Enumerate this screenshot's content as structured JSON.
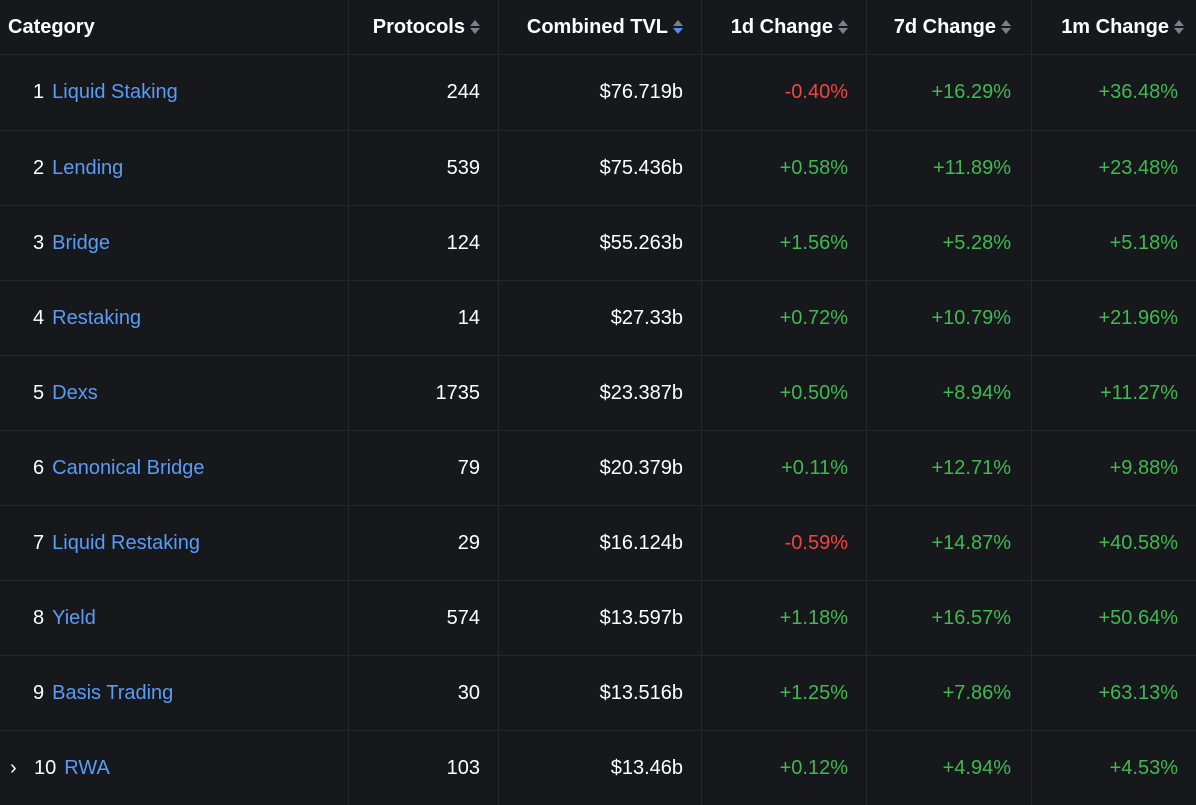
{
  "colors": {
    "background": "#17181c",
    "link": "#5a9bf6",
    "positive": "#3fb950",
    "negative": "#ef4444",
    "sort_active": "#4f8ef7"
  },
  "header": {
    "category": "Category",
    "protocols": "Protocols",
    "combined_tvl": "Combined TVL",
    "change_1d": "1d Change",
    "change_7d": "7d Change",
    "change_1m": "1m Change"
  },
  "rows": [
    {
      "rank": "1",
      "name": "Liquid Staking",
      "protocols": "244",
      "tvl": "$76.719b",
      "d1": "-0.40%",
      "d7": "+16.29%",
      "m1": "+36.48%"
    },
    {
      "rank": "2",
      "name": "Lending",
      "protocols": "539",
      "tvl": "$75.436b",
      "d1": "+0.58%",
      "d7": "+11.89%",
      "m1": "+23.48%"
    },
    {
      "rank": "3",
      "name": "Bridge",
      "protocols": "124",
      "tvl": "$55.263b",
      "d1": "+1.56%",
      "d7": "+5.28%",
      "m1": "+5.18%"
    },
    {
      "rank": "4",
      "name": "Restaking",
      "protocols": "14",
      "tvl": "$27.33b",
      "d1": "+0.72%",
      "d7": "+10.79%",
      "m1": "+21.96%"
    },
    {
      "rank": "5",
      "name": "Dexs",
      "protocols": "1735",
      "tvl": "$23.387b",
      "d1": "+0.50%",
      "d7": "+8.94%",
      "m1": "+11.27%"
    },
    {
      "rank": "6",
      "name": "Canonical Bridge",
      "protocols": "79",
      "tvl": "$20.379b",
      "d1": "+0.11%",
      "d7": "+12.71%",
      "m1": "+9.88%"
    },
    {
      "rank": "7",
      "name": "Liquid Restaking",
      "protocols": "29",
      "tvl": "$16.124b",
      "d1": "-0.59%",
      "d7": "+14.87%",
      "m1": "+40.58%"
    },
    {
      "rank": "8",
      "name": "Yield",
      "protocols": "574",
      "tvl": "$13.597b",
      "d1": "+1.18%",
      "d7": "+16.57%",
      "m1": "+50.64%"
    },
    {
      "rank": "9",
      "name": "Basis Trading",
      "protocols": "30",
      "tvl": "$13.516b",
      "d1": "+1.25%",
      "d7": "+7.86%",
      "m1": "+63.13%"
    },
    {
      "rank": "10",
      "name": "RWA",
      "protocols": "103",
      "tvl": "$13.46b",
      "d1": "+0.12%",
      "d7": "+4.94%",
      "m1": "+4.53%",
      "expandable": true,
      "expand_icon": "chevron-right-icon"
    }
  ],
  "sort": {
    "column": "combined_tvl",
    "direction": "descending"
  }
}
